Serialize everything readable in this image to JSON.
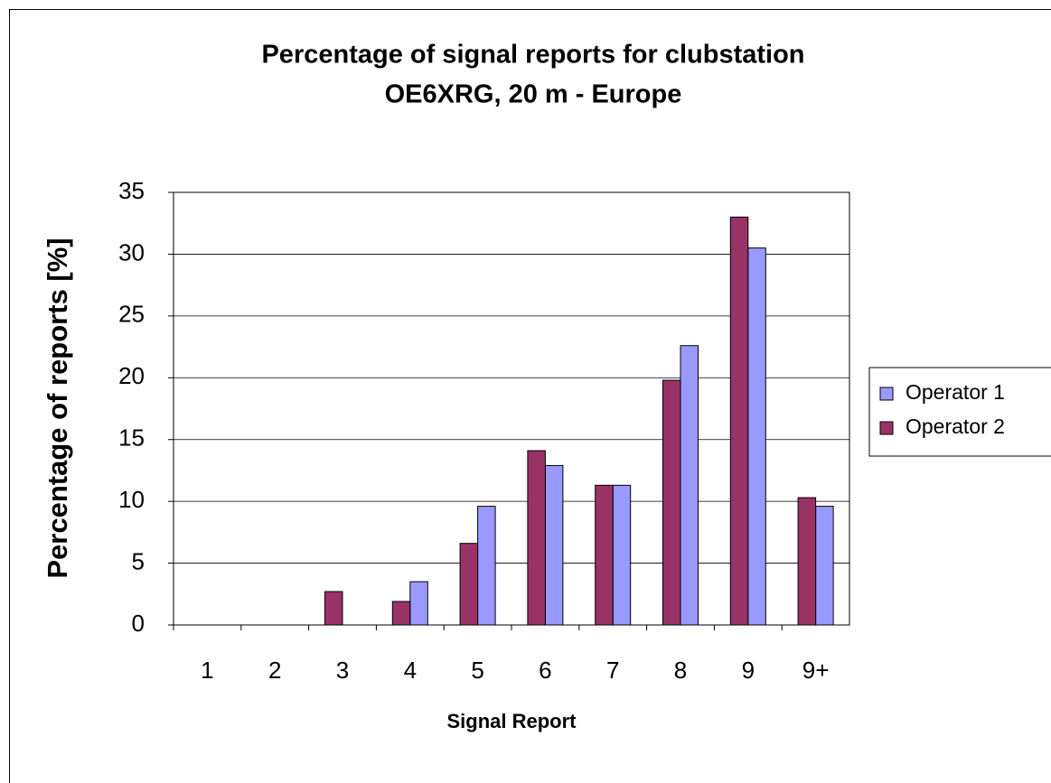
{
  "chart_data": {
    "type": "bar",
    "title": [
      "Percentage of signal reports for clubstation",
      "OE6XRG, 20 m - Europe"
    ],
    "x_label": "Signal Report",
    "y_label": "Percentage of reports [%]",
    "categories": [
      "1",
      "2",
      "3",
      "4",
      "5",
      "6",
      "7",
      "8",
      "9",
      "9+"
    ],
    "series": [
      {
        "name": "Operator 1",
        "color": "#9999ff",
        "values": [
          0,
          0,
          0,
          3.5,
          9.6,
          12.9,
          11.3,
          22.6,
          30.5,
          9.6
        ]
      },
      {
        "name": "Operator 2",
        "color": "#993366",
        "values": [
          0,
          0,
          2.7,
          1.9,
          6.6,
          14.1,
          11.3,
          19.8,
          33,
          10.3
        ]
      }
    ],
    "ylim": [
      0,
      35
    ],
    "yticks": [
      0,
      5,
      10,
      15,
      20,
      25,
      30,
      35
    ],
    "grid": true,
    "legend": "right"
  }
}
